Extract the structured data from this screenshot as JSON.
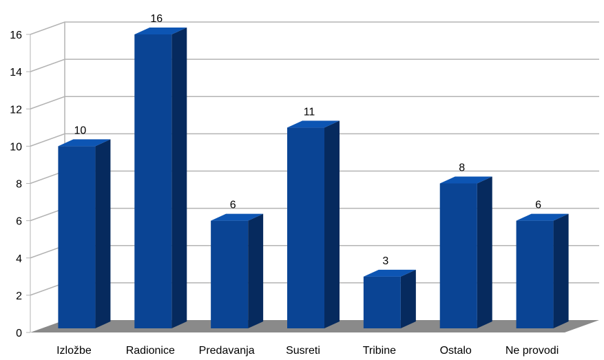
{
  "chart_data": {
    "type": "bar",
    "categories": [
      "Izložbe",
      "Radionice",
      "Predavanja",
      "Susreti",
      "Tribine",
      "Ostalo",
      "Ne provodi"
    ],
    "values": [
      10,
      16,
      6,
      11,
      3,
      8,
      6
    ],
    "data_labels": [
      "10",
      "16",
      "6",
      "11",
      "3",
      "8",
      "6"
    ],
    "ylim": [
      0,
      16
    ],
    "yticks": [
      "0",
      "2",
      "4",
      "6",
      "8",
      "10",
      "12",
      "14",
      "16"
    ],
    "grid": true,
    "legend": "none",
    "three_d": true,
    "colors": {
      "bar_front": "#0a4494",
      "bar_side": "#062a5e",
      "bar_top": "#0d55b3",
      "floor": "#8a8a8a",
      "grid": "#b3b3b3",
      "axis": "#b3b3b3"
    }
  }
}
